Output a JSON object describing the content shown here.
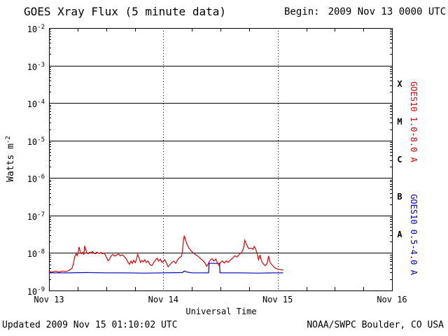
{
  "header": {
    "title": "GOES Xray Flux (5 minute data)",
    "begin_label": "Begin:",
    "begin_value": "2009 Nov 13 0000 UTC"
  },
  "footer": {
    "updated": "Updated 2009 Nov 15 01:10:02 UTC",
    "source": "NOAA/SWPC Boulder, CO USA"
  },
  "chart_data": {
    "type": "line",
    "title": "GOES Xray Flux (5 minute data)",
    "xlabel": "Universal Time",
    "ylabel": "Watts m^-2",
    "ylabel_parts": {
      "text": "Watts m",
      "sup": "-2"
    },
    "x_unit": "hours since 2009 Nov 13 0000 UTC",
    "xlim_hours": [
      0,
      72
    ],
    "x_ticks": [
      {
        "hour": 0,
        "label": "Nov 13"
      },
      {
        "hour": 24,
        "label": "Nov 14"
      },
      {
        "hour": 48,
        "label": "Nov 15"
      },
      {
        "hour": 72,
        "label": "Nov 16"
      }
    ],
    "ylog": true,
    "ylim": [
      1e-09,
      0.01
    ],
    "y_tick_exponents": [
      -2,
      -3,
      -4,
      -5,
      -6,
      -7,
      -8,
      -9
    ],
    "grid": {
      "h_lines_at_exponents": [
        -3,
        -4,
        -5,
        -6,
        -7,
        -8
      ],
      "v_dotted_at_hours": [
        24,
        48
      ]
    },
    "flare_classes": [
      {
        "label": "X",
        "between_exp": [
          -4,
          -3
        ]
      },
      {
        "label": "M",
        "between_exp": [
          -5,
          -4
        ]
      },
      {
        "label": "C",
        "between_exp": [
          -6,
          -5
        ]
      },
      {
        "label": "B",
        "between_exp": [
          -7,
          -6
        ]
      },
      {
        "label": "A",
        "between_exp": [
          -8,
          -7
        ]
      }
    ],
    "series": [
      {
        "key": "long",
        "name": "GOES10 1.0-8.0 A",
        "color": "#dd0000",
        "label_band_exponents": [
          -3,
          -6
        ],
        "points": [
          [
            0,
            3.2e-09
          ],
          [
            0.7,
            3.1e-09
          ],
          [
            1.4,
            3.3e-09
          ],
          [
            2.1,
            3.1e-09
          ],
          [
            2.8,
            3.3e-09
          ],
          [
            3.5,
            3.2e-09
          ],
          [
            4.2,
            3.4e-09
          ],
          [
            4.8,
            3.9e-09
          ],
          [
            5.1,
            5e-09
          ],
          [
            5.4,
            8e-09
          ],
          [
            5.7,
            9.5e-09
          ],
          [
            5.9,
            8.5e-09
          ],
          [
            6.1,
            1e-08
          ],
          [
            6.3,
            1.45e-08
          ],
          [
            6.5,
            1.15e-08
          ],
          [
            6.8,
            9.5e-09
          ],
          [
            7.1,
            1.05e-08
          ],
          [
            7.3,
            9e-09
          ],
          [
            7.5,
            1.55e-08
          ],
          [
            7.7,
            1.25e-08
          ],
          [
            7.9,
            1.05e-08
          ],
          [
            8.2,
            9.5e-09
          ],
          [
            8.5,
            1.05e-08
          ],
          [
            8.8,
            1e-08
          ],
          [
            9.1,
            1.1e-08
          ],
          [
            9.4,
            1e-08
          ],
          [
            9.7,
            9.5e-09
          ],
          [
            10.0,
            1.05e-08
          ],
          [
            10.3,
            1e-08
          ],
          [
            10.6,
            9.7e-09
          ],
          [
            10.9,
            1.03e-08
          ],
          [
            11.2,
            9.5e-09
          ],
          [
            11.5,
            1e-08
          ],
          [
            11.8,
            9e-09
          ],
          [
            12.1,
            7.5e-09
          ],
          [
            12.4,
            6.2e-09
          ],
          [
            12.7,
            6.8e-09
          ],
          [
            13.0,
            8.2e-09
          ],
          [
            13.4,
            9.2e-09
          ],
          [
            13.8,
            8.2e-09
          ],
          [
            14.2,
            8.9e-09
          ],
          [
            14.6,
            9.4e-09
          ],
          [
            15.0,
            8.4e-09
          ],
          [
            15.4,
            9e-09
          ],
          [
            15.8,
            8e-09
          ],
          [
            16.2,
            7e-09
          ],
          [
            16.6,
            5.6e-09
          ],
          [
            16.9,
            5e-09
          ],
          [
            17.2,
            6.1e-09
          ],
          [
            17.5,
            5.3e-09
          ],
          [
            17.8,
            6.4e-09
          ],
          [
            18.1,
            5.5e-09
          ],
          [
            18.4,
            7e-09
          ],
          [
            18.6,
            9.2e-09
          ],
          [
            18.9,
            7.5e-09
          ],
          [
            19.2,
            5.6e-09
          ],
          [
            19.5,
            6.3e-09
          ],
          [
            19.8,
            5.8e-09
          ],
          [
            20.1,
            6.6e-09
          ],
          [
            20.4,
            5.6e-09
          ],
          [
            20.8,
            6.1e-09
          ],
          [
            21.2,
            4.9e-09
          ],
          [
            21.6,
            4.6e-09
          ],
          [
            22.0,
            5.6e-09
          ],
          [
            22.4,
            6.6e-09
          ],
          [
            22.7,
            7.3e-09
          ],
          [
            23.0,
            6.1e-09
          ],
          [
            23.4,
            6.9e-09
          ],
          [
            23.7,
            5.6e-09
          ],
          [
            24.0,
            5.9e-09
          ],
          [
            24.3,
            6.6e-09
          ],
          [
            24.6,
            5.6e-09
          ],
          [
            25.0,
            4.3e-09
          ],
          [
            25.4,
            4.9e-09
          ],
          [
            25.8,
            5.6e-09
          ],
          [
            26.2,
            6.1e-09
          ],
          [
            26.6,
            5.3e-09
          ],
          [
            27.0,
            6.6e-09
          ],
          [
            27.4,
            7.6e-09
          ],
          [
            27.8,
            8.1e-09
          ],
          [
            28.0,
            1.1e-08
          ],
          [
            28.2,
            2e-08
          ],
          [
            28.4,
            2.9e-08
          ],
          [
            28.6,
            2.4e-08
          ],
          [
            28.9,
            1.8e-08
          ],
          [
            29.3,
            1.4e-08
          ],
          [
            29.8,
            1.15e-08
          ],
          [
            30.3,
            1e-08
          ],
          [
            30.8,
            9e-09
          ],
          [
            31.3,
            8.1e-09
          ],
          [
            31.8,
            7.1e-09
          ],
          [
            32.3,
            6.3e-09
          ],
          [
            32.8,
            5.3e-09
          ],
          [
            33.1,
            4.4e-09
          ],
          [
            33.4,
            5.1e-09
          ],
          [
            33.8,
            6.3e-09
          ],
          [
            34.2,
            7.1e-09
          ],
          [
            34.6,
            6.1e-09
          ],
          [
            35.0,
            6.9e-09
          ],
          [
            35.4,
            5.3e-09
          ],
          [
            35.7,
            4.6e-09
          ],
          [
            36.0,
            5.6e-09
          ],
          [
            36.4,
            6.1e-09
          ],
          [
            36.8,
            5.4e-09
          ],
          [
            37.2,
            6.2e-09
          ],
          [
            37.6,
            5.6e-09
          ],
          [
            38.0,
            6.4e-09
          ],
          [
            38.5,
            7.2e-09
          ],
          [
            39.0,
            8.4e-09
          ],
          [
            39.5,
            7.9e-09
          ],
          [
            40.0,
            9.4e-09
          ],
          [
            40.5,
            1.05e-08
          ],
          [
            40.8,
            1.3e-08
          ],
          [
            41.1,
            2.2e-08
          ],
          [
            41.4,
            1.75e-08
          ],
          [
            41.7,
            1.45e-08
          ],
          [
            42.0,
            1.3e-08
          ],
          [
            42.4,
            1.35e-08
          ],
          [
            42.8,
            1.25e-08
          ],
          [
            43.1,
            1.5e-08
          ],
          [
            43.4,
            1.25e-08
          ],
          [
            43.7,
            9.5e-09
          ],
          [
            44.0,
            6.6e-09
          ],
          [
            44.3,
            9e-09
          ],
          [
            44.6,
            6.1e-09
          ],
          [
            45.0,
            5.1e-09
          ],
          [
            45.4,
            4.6e-09
          ],
          [
            45.8,
            5.3e-09
          ],
          [
            46.1,
            8.4e-09
          ],
          [
            46.4,
            5.6e-09
          ],
          [
            46.8,
            4.8e-09
          ],
          [
            47.2,
            4.3e-09
          ],
          [
            47.6,
            3.9e-09
          ],
          [
            48.0,
            3.7e-09
          ],
          [
            48.6,
            3.6e-09
          ],
          [
            49.17,
            3.5e-09
          ]
        ]
      },
      {
        "key": "short",
        "name": "GOES10 0.5-4.0 A",
        "color": "#0000bb",
        "label_band_exponents": [
          -6,
          -9
        ],
        "points": [
          [
            0,
            2.95e-09
          ],
          [
            4,
            2.95e-09
          ],
          [
            8,
            3e-09
          ],
          [
            12,
            2.95e-09
          ],
          [
            16,
            2.95e-09
          ],
          [
            20,
            2.9e-09
          ],
          [
            24,
            2.95e-09
          ],
          [
            28,
            3e-09
          ],
          [
            28.4,
            3.3e-09
          ],
          [
            29,
            3.1e-09
          ],
          [
            30,
            2.95e-09
          ],
          [
            33.5,
            2.95e-09
          ],
          [
            33.6,
            5.3e-09
          ],
          [
            35.8,
            5.3e-09
          ],
          [
            35.9,
            2.95e-09
          ],
          [
            40,
            2.95e-09
          ],
          [
            44,
            2.9e-09
          ],
          [
            47,
            2.95e-09
          ],
          [
            49.17,
            2.95e-09
          ]
        ]
      }
    ]
  }
}
